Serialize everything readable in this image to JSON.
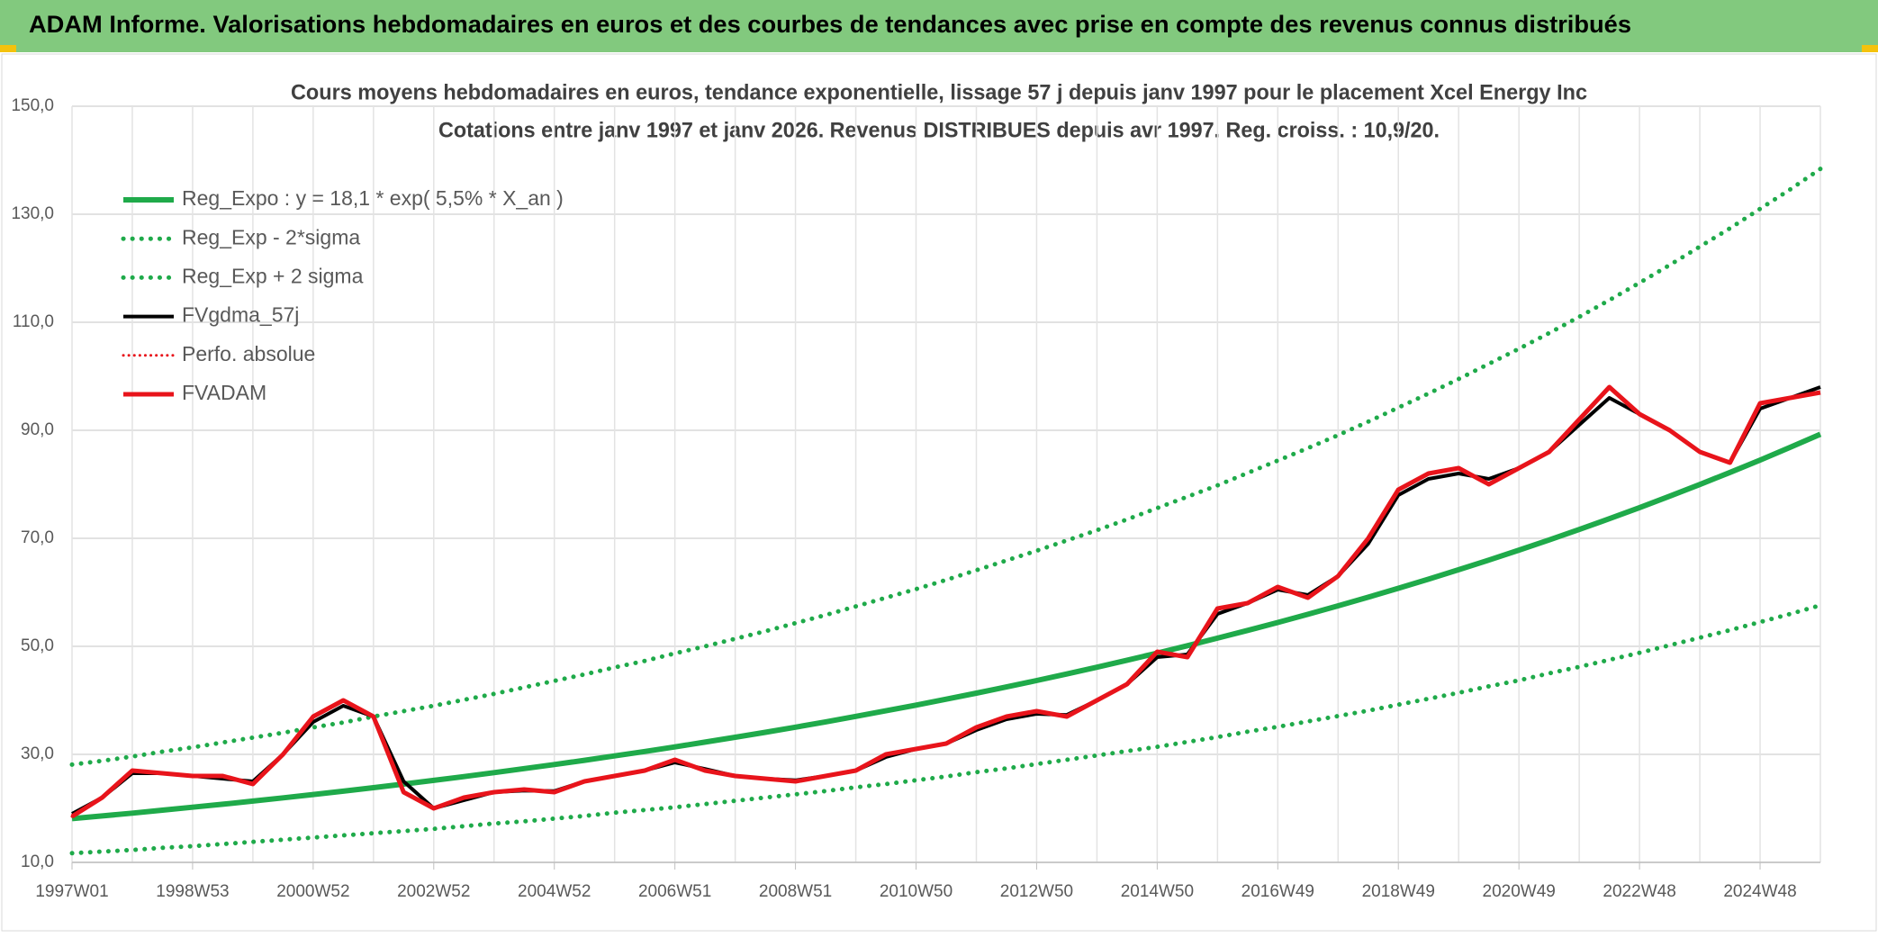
{
  "header": {
    "title": "ADAM Informe. Valorisations hebdomadaires en euros et des courbes de tendances avec prise en compte des revenus connus distribués"
  },
  "chart_data": {
    "type": "line",
    "title": "Cours moyens hebdomadaires en euros, tendance exponentielle, lissage 57 j depuis janv 1997 pour le placement Xcel Energy Inc",
    "subtitle": "Cotations entre janv 1997 et janv 2026. Revenus DISTRIBUES depuis avr 1997. Reg. croiss. : 10,9/20.",
    "categories": [
      "1997W01",
      null,
      null,
      null,
      "1998W53",
      null,
      null,
      null,
      "2000W52",
      null,
      null,
      null,
      "2002W52",
      null,
      null,
      null,
      "2004W52",
      null,
      null,
      null,
      "2006W51",
      null,
      null,
      null,
      "2008W51",
      null,
      null,
      null,
      "2010W50",
      null,
      null,
      null,
      "2012W50",
      null,
      null,
      null,
      "2014W50",
      null,
      null,
      null,
      "2016W49",
      null,
      null,
      null,
      "2018W49",
      null,
      null,
      null,
      "2020W49",
      null,
      null,
      null,
      "2022W48",
      null,
      null,
      null,
      "2024W48",
      null,
      null
    ],
    "ylim": [
      10,
      150
    ],
    "yticks": [
      {
        "value": 10,
        "label": "10,0"
      },
      {
        "value": 30,
        "label": "30,0"
      },
      {
        "value": 50,
        "label": "50,0"
      },
      {
        "value": 70,
        "label": "70,0"
      },
      {
        "value": 90,
        "label": "90,0"
      },
      {
        "value": 110,
        "label": "110,0"
      },
      {
        "value": 130,
        "label": "130,0"
      },
      {
        "value": 150,
        "label": "150,0"
      }
    ],
    "grid": true,
    "legend": "top-left",
    "series": [
      {
        "name": "Reg_Expo : y = 18,1 * exp( 5,5% *  X_an )",
        "color": "#1faa4a",
        "style": "solid",
        "width": 6,
        "values": [
          18.1,
          18.6,
          19.12,
          19.66,
          20.21,
          20.77,
          21.35,
          21.95,
          22.56,
          23.19,
          23.84,
          24.5,
          25.19,
          25.89,
          26.61,
          27.36,
          28.12,
          28.9,
          29.71,
          30.54,
          31.39,
          32.27,
          33.17,
          34.09,
          35.04,
          36.02,
          37.03,
          38.06,
          39.12,
          40.21,
          41.33,
          42.49,
          43.67,
          44.89,
          46.14,
          47.43,
          48.75,
          50.11,
          51.51,
          52.95,
          54.42,
          55.94,
          57.5,
          59.1,
          60.75,
          62.44,
          64.18,
          65.97,
          67.81,
          69.7,
          71.64,
          73.64,
          75.69,
          77.8,
          79.97,
          82.2,
          84.49,
          86.85,
          89.27
        ]
      },
      {
        "name": "Reg_Exp - 2*sigma",
        "color": "#1faa4a",
        "style": "dotted",
        "width": 5,
        "values": [
          11.7,
          12.0,
          12.3,
          12.7,
          13.0,
          13.4,
          13.8,
          14.2,
          14.6,
          15.0,
          15.4,
          15.8,
          16.2,
          16.7,
          17.2,
          17.6,
          18.1,
          18.6,
          19.2,
          19.7,
          20.2,
          20.8,
          21.4,
          22.0,
          22.6,
          23.2,
          23.9,
          24.5,
          25.2,
          25.9,
          26.7,
          27.4,
          28.2,
          29.0,
          29.8,
          30.6,
          31.4,
          32.3,
          33.2,
          34.2,
          35.1,
          36.1,
          37.1,
          38.1,
          39.2,
          40.3,
          41.4,
          42.6,
          43.7,
          45.0,
          46.2,
          47.5,
          48.8,
          50.2,
          51.6,
          53.0,
          54.5,
          56.0,
          57.6
        ]
      },
      {
        "name": "Reg_Exp + 2 sigma",
        "color": "#1faa4a",
        "style": "dotted",
        "width": 5,
        "values": [
          28.1,
          28.8,
          29.6,
          30.5,
          31.3,
          32.2,
          33.1,
          34.0,
          35.0,
          35.9,
          37.0,
          38.0,
          39.0,
          40.1,
          41.2,
          42.4,
          43.6,
          44.8,
          46.1,
          47.3,
          48.7,
          50.0,
          51.4,
          52.8,
          54.3,
          55.8,
          57.4,
          59.0,
          60.6,
          62.3,
          64.1,
          65.9,
          67.7,
          69.6,
          71.5,
          73.5,
          75.6,
          77.7,
          79.8,
          82.1,
          84.4,
          86.7,
          89.1,
          91.6,
          94.2,
          96.8,
          99.5,
          102.3,
          105.1,
          108.0,
          111.0,
          114.1,
          117.3,
          120.6,
          124.0,
          127.4,
          131.0,
          134.6,
          138.4
        ]
      },
      {
        "name": "FVgdma_57j",
        "color": "#000000",
        "style": "solid",
        "width": 4,
        "values": [
          19,
          22,
          26.5,
          26.5,
          26,
          25.5,
          25,
          30,
          36,
          39,
          37,
          25,
          20,
          21.5,
          23,
          23.3,
          23.2,
          25,
          26,
          27,
          28.5,
          27.3,
          26,
          25.5,
          25.2,
          26,
          27,
          29.5,
          31,
          32,
          34.5,
          36.5,
          37.5,
          37.3,
          40,
          43,
          48,
          48.5,
          56,
          58,
          60.5,
          59.5,
          63,
          69,
          78,
          81,
          82,
          81,
          83,
          86,
          91,
          96,
          93,
          90,
          86,
          84,
          94,
          96,
          98
        ]
      },
      {
        "name": "Perfo. absolue",
        "color": "#e8141b",
        "style": "dotted",
        "width": 3,
        "values": [
          18.5,
          22,
          27,
          26.5,
          26,
          26,
          24.5,
          30,
          37,
          40,
          37,
          23,
          20,
          22,
          23,
          23.5,
          23,
          25,
          26,
          27,
          29,
          27,
          26,
          25.5,
          25,
          26,
          27,
          30,
          31,
          32,
          35,
          37,
          38,
          37,
          40,
          43,
          49,
          48,
          57,
          58,
          61,
          59,
          63,
          70,
          79,
          82,
          83,
          80,
          83,
          86,
          92,
          98,
          93,
          90,
          86,
          84,
          95,
          96,
          97
        ]
      },
      {
        "name": "FVADAM",
        "color": "#e8141b",
        "style": "solid",
        "width": 5,
        "values": [
          18.5,
          22,
          27,
          26.5,
          26,
          26,
          24.5,
          30,
          37,
          40,
          37,
          23,
          20,
          22,
          23,
          23.5,
          23,
          25,
          26,
          27,
          29,
          27,
          26,
          25.5,
          25,
          26,
          27,
          30,
          31,
          32,
          35,
          37,
          38,
          37,
          40,
          43,
          49,
          48,
          57,
          58,
          61,
          59,
          63,
          70,
          79,
          82,
          83,
          80,
          83,
          86,
          92,
          98,
          93,
          90,
          86,
          84,
          95,
          96,
          97
        ]
      }
    ]
  }
}
